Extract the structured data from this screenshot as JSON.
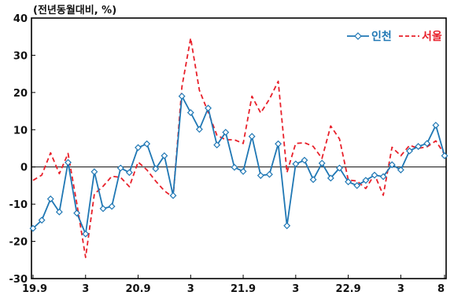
{
  "chart_data": {
    "type": "line",
    "unit_label": "(전년동월대비, %)",
    "ylim": [
      -30,
      40
    ],
    "y_ticks": [
      "40",
      "30",
      "20",
      "10",
      "0",
      "-10",
      "-20",
      "-30"
    ],
    "y_tick_values": [
      40,
      30,
      20,
      10,
      0,
      -10,
      -20,
      -30
    ],
    "x_ticks": [
      {
        "label": "19.9",
        "index": 0
      },
      {
        "label": "3",
        "index": 6
      },
      {
        "label": "20.9",
        "index": 12
      },
      {
        "label": "3",
        "index": 18
      },
      {
        "label": "21.9",
        "index": 24
      },
      {
        "label": "3",
        "index": 30
      },
      {
        "label": "22.9",
        "index": 36
      },
      {
        "label": "3",
        "index": 42
      },
      {
        "label": "8",
        "index": 47
      }
    ],
    "legend_position": "top-right",
    "grid": false,
    "series": [
      {
        "name": "인천",
        "color": "#1f77b4",
        "style": "solid-diamond",
        "values": [
          -16.5,
          -14.3,
          -8.6,
          -12.1,
          1.2,
          -12.4,
          -18.0,
          -1.3,
          -11.2,
          -10.6,
          -0.3,
          -1.5,
          5.2,
          6.2,
          -0.5,
          3.0,
          -7.7,
          19.0,
          14.6,
          10.1,
          15.8,
          5.9,
          9.3,
          -0.1,
          -1.2,
          8.2,
          -2.3,
          -2.0,
          6.2,
          -15.8,
          0.8,
          1.8,
          -3.4,
          1.0,
          -3.0,
          -0.3,
          -4.0,
          -5.0,
          -3.6,
          -2.2,
          -2.6,
          0.6,
          -0.8,
          4.3,
          5.5,
          6.3,
          11.2,
          3.0
        ]
      },
      {
        "name": "서울",
        "color": "#e8202a",
        "style": "dashed",
        "values": [
          -3.6,
          -2.2,
          3.8,
          -1.8,
          3.6,
          -9.8,
          -24.3,
          -7.3,
          -5.2,
          -2.5,
          -2.8,
          -5.3,
          1.3,
          -0.8,
          -3.8,
          -6.4,
          -8.2,
          21.5,
          34.6,
          20.6,
          14.7,
          8.5,
          7.3,
          7.3,
          6.3,
          19.0,
          14.5,
          18.2,
          23.0,
          -1.5,
          6.3,
          6.5,
          5.5,
          2.3,
          11.0,
          7.5,
          -3.5,
          -3.8,
          -5.8,
          -2.0,
          -7.6,
          5.3,
          3.0,
          5.8,
          5.0,
          5.4,
          7.0,
          3.4
        ]
      }
    ]
  }
}
